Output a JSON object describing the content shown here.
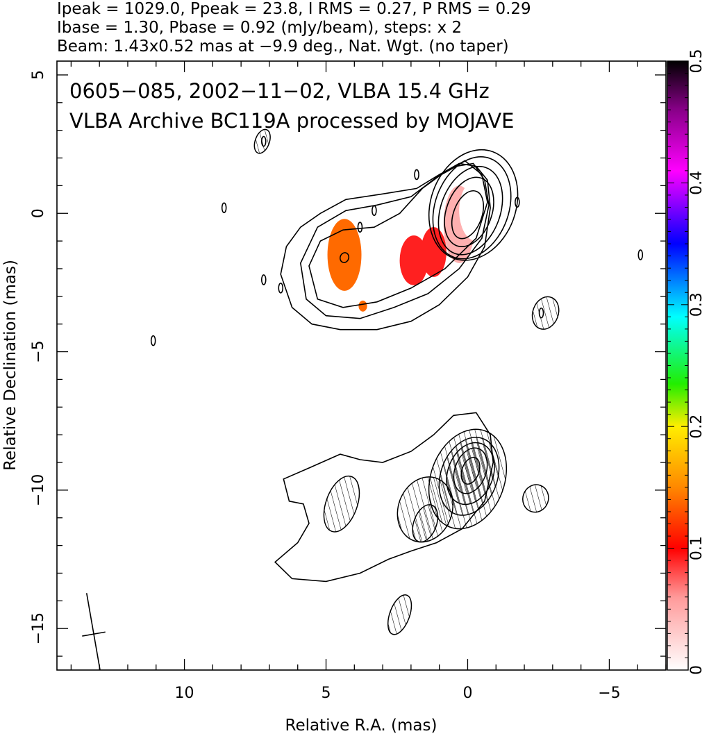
{
  "header": {
    "line1": "Ipeak = 1029.0, Ppeak = 23.8, I RMS = 0.27, P RMS = 0.29",
    "line2": "Ibase = 1.30, Pbase = 0.92 (mJy/beam), steps: x 2",
    "line3": "Beam: 1.43x0.52 mas at −9.9 deg., Nat. Wgt. (no taper)"
  },
  "plot_title": {
    "line1": "0605−085, 2002−11−02, VLBA 15.4 GHz",
    "line2": "VLBA Archive BC119A processed by MOJAVE"
  },
  "colors": {
    "contour": "#000000",
    "frame": "#000000",
    "colorbar_stops": [
      "#ffffff",
      "#ff0000",
      "#ff9900",
      "#ffff00",
      "#00ff00",
      "#00ffff",
      "#0000ff",
      "#ff00ff",
      "#000000"
    ]
  },
  "chart_data": {
    "type": "contour",
    "xlabel": "Relative R.A. (mas)",
    "ylabel": "Relative Declination (mas)",
    "xlim": [
      14.5,
      -7.0
    ],
    "ylim": [
      -16.5,
      5.5
    ],
    "xticks": [
      {
        "value": 10,
        "label": "10"
      },
      {
        "value": 5,
        "label": "5"
      },
      {
        "value": 0,
        "label": "0"
      },
      {
        "value": -5,
        "label": "−5"
      }
    ],
    "yticks": [
      {
        "value": 5,
        "label": "5"
      },
      {
        "value": 0,
        "label": "0"
      },
      {
        "value": -5,
        "label": "−5"
      },
      {
        "value": -10,
        "label": "−10"
      },
      {
        "value": -15,
        "label": "−15"
      }
    ],
    "colorbar": {
      "range": [
        0,
        0.5
      ],
      "ticks": [
        {
          "value": 0,
          "label": "0"
        },
        {
          "value": 0.1,
          "label": "0.1"
        },
        {
          "value": 0.2,
          "label": "0.2"
        },
        {
          "value": 0.3,
          "label": "0.3"
        },
        {
          "value": 0.4,
          "label": "0.4"
        },
        {
          "value": 0.5,
          "label": "0.5"
        }
      ]
    },
    "upper_map_total_intensity_contours": [
      {
        "ra": 0.0,
        "dec": -0.05,
        "rx": 0.5,
        "ry": 0.9
      },
      {
        "ra": -0.05,
        "dec": 0.05,
        "rx": 0.8,
        "ry": 1.3
      },
      {
        "ra": -0.1,
        "dec": 0.1,
        "rx": 1.05,
        "ry": 1.65
      },
      {
        "ra": -0.15,
        "dec": 0.2,
        "rx": 1.3,
        "ry": 1.9
      },
      {
        "ra": -0.2,
        "dec": 0.3,
        "rx": 1.5,
        "ry": 2.05
      },
      {
        "ra": 4.35,
        "dec": -1.6,
        "rx": 0.15,
        "ry": 0.18
      }
    ],
    "upper_map_outer_contours": [
      [
        [
          6.4,
          -1.2
        ],
        [
          6.6,
          -2.2
        ],
        [
          6.2,
          -3.4
        ],
        [
          5.5,
          -4.0
        ],
        [
          4.5,
          -4.2
        ],
        [
          3.2,
          -4.2
        ],
        [
          2.0,
          -3.9
        ],
        [
          1.0,
          -3.3
        ],
        [
          0.0,
          -2.3
        ],
        [
          -0.6,
          -1.2
        ],
        [
          -0.8,
          0.2
        ],
        [
          -0.7,
          1.2
        ],
        [
          -0.3,
          1.7
        ],
        [
          0.3,
          1.8
        ],
        [
          1.0,
          1.4
        ],
        [
          1.8,
          0.9
        ],
        [
          3.0,
          0.7
        ],
        [
          4.3,
          0.5
        ],
        [
          5.2,
          0.0
        ],
        [
          5.9,
          -0.5
        ]
      ],
      [
        [
          5.9,
          -1.8
        ],
        [
          5.7,
          -3.1
        ],
        [
          5.0,
          -3.7
        ],
        [
          3.8,
          -3.8
        ],
        [
          2.6,
          -3.4
        ],
        [
          1.4,
          -2.9
        ],
        [
          0.3,
          -2.0
        ],
        [
          -0.5,
          -0.9
        ],
        [
          -0.75,
          0.3
        ],
        [
          -0.6,
          1.2
        ],
        [
          -0.2,
          1.8
        ],
        [
          0.4,
          1.7
        ],
        [
          1.1,
          1.3
        ],
        [
          2.0,
          0.6
        ],
        [
          3.2,
          0.3
        ],
        [
          4.3,
          0.1
        ],
        [
          5.3,
          -0.5
        ]
      ],
      [
        [
          5.6,
          -1.9
        ],
        [
          5.3,
          -3.1
        ],
        [
          4.4,
          -3.4
        ],
        [
          3.2,
          -3.2
        ],
        [
          2.0,
          -2.7
        ],
        [
          0.8,
          -2.0
        ],
        [
          -0.3,
          -0.9
        ],
        [
          -0.7,
          0.4
        ],
        [
          -0.5,
          1.4
        ],
        [
          0.1,
          1.9
        ],
        [
          0.8,
          1.5
        ],
        [
          1.6,
          0.9
        ],
        [
          2.4,
          0.0
        ],
        [
          3.3,
          -0.5
        ],
        [
          4.4,
          -0.6
        ],
        [
          5.2,
          -1.0
        ]
      ]
    ],
    "upper_map_noise_contours": [
      [
        7.2,
        2.6
      ],
      [
        8.6,
        0.2
      ],
      [
        7.2,
        -2.4
      ],
      [
        6.6,
        -2.7
      ],
      [
        11.1,
        -4.6
      ],
      [
        1.8,
        1.4
      ],
      [
        -1.75,
        0.4
      ],
      [
        -6.1,
        -1.5
      ],
      [
        -2.6,
        -3.6
      ],
      [
        3.8,
        -0.5
      ],
      [
        3.3,
        0.1
      ]
    ],
    "polarization_fraction_regions": [
      {
        "ra": 4.35,
        "dec": -1.5,
        "value": 0.12
      },
      {
        "ra": 1.9,
        "dec": -1.7,
        "value": 0.1
      },
      {
        "ra": 1.2,
        "dec": -1.4,
        "value": 0.09
      },
      {
        "ra": 0.3,
        "dec": -0.4,
        "value": 0.05
      },
      {
        "ra": -0.3,
        "dec": 0.1,
        "value": 0.03
      },
      {
        "ra": 3.7,
        "dec": -3.35,
        "value": 0.15
      }
    ],
    "lower_map_polarized_intensity_contours": [
      {
        "ra": -0.1,
        "dec": -9.3,
        "rx": 0.3,
        "ry": 0.5
      },
      {
        "ra": -0.1,
        "dec": -9.3,
        "rx": 0.55,
        "ry": 0.85
      },
      {
        "ra": -0.1,
        "dec": -9.4,
        "rx": 0.8,
        "ry": 1.15
      },
      {
        "ra": -0.05,
        "dec": -9.5,
        "rx": 1.0,
        "ry": 1.45
      },
      {
        "ra": 0.0,
        "dec": -9.6,
        "rx": 1.3,
        "ry": 1.85
      },
      {
        "ra": 4.45,
        "dec": -10.5,
        "rx": 0.55,
        "ry": 1.05
      },
      {
        "ra": 1.5,
        "dec": -10.7,
        "rx": 0.95,
        "ry": 1.2
      },
      {
        "ra": 1.5,
        "dec": -11.2,
        "rx": 0.4,
        "ry": 0.7
      },
      {
        "ra": 2.4,
        "dec": -14.5,
        "rx": 0.35,
        "ry": 0.75
      },
      {
        "ra": 7.25,
        "dec": 2.6,
        "rx": 0.25,
        "ry": 0.45
      },
      {
        "ra": -2.4,
        "dec": -10.3,
        "rx": 0.45,
        "ry": 0.5
      },
      {
        "ra": -2.75,
        "dec": -3.6,
        "rx": 0.45,
        "ry": 0.6
      }
    ],
    "lower_map_outer_contour": [
      [
        6.5,
        -9.6
      ],
      [
        6.3,
        -10.4
      ],
      [
        5.8,
        -10.5
      ],
      [
        5.6,
        -11.2
      ],
      [
        6.0,
        -11.9
      ],
      [
        6.8,
        -12.6
      ],
      [
        6.2,
        -13.2
      ],
      [
        5.0,
        -13.3
      ],
      [
        3.8,
        -13.0
      ],
      [
        2.8,
        -12.5
      ],
      [
        2.0,
        -12.2
      ],
      [
        1.1,
        -11.9
      ],
      [
        0.2,
        -11.4
      ],
      [
        -0.6,
        -10.4
      ],
      [
        -0.9,
        -9.0
      ],
      [
        -0.8,
        -8.0
      ],
      [
        -0.3,
        -7.2
      ],
      [
        0.5,
        -7.3
      ],
      [
        1.2,
        -8.0
      ],
      [
        2.0,
        -8.6
      ],
      [
        3.0,
        -9.0
      ],
      [
        3.8,
        -8.9
      ],
      [
        4.5,
        -8.7
      ],
      [
        5.6,
        -9.2
      ]
    ],
    "beam": {
      "major_mas": 1.43,
      "minor_mas": 0.52,
      "pa_deg": -9.9,
      "ra": 13.2,
      "dec": -15.2
    }
  }
}
